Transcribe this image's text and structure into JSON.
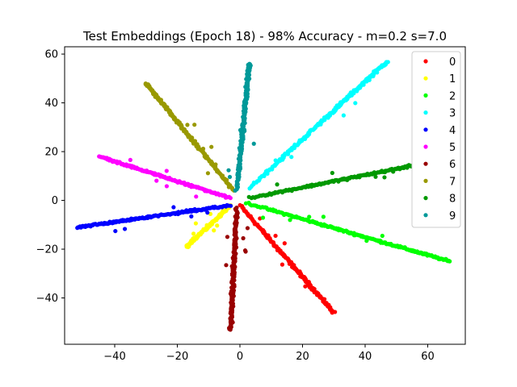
{
  "chart_data": {
    "type": "scatter",
    "title": "Test Embeddings (Epoch 18) - 98% Accuracy - m=0.2 s=7.0",
    "xlabel": "",
    "ylabel": "",
    "xlim": [
      -56,
      72
    ],
    "ylim": [
      -59,
      63
    ],
    "xticks": [
      -40,
      -20,
      0,
      20,
      40,
      60
    ],
    "yticks": [
      -40,
      -20,
      0,
      20,
      40,
      60
    ],
    "grid": false,
    "legend_position": "top-right",
    "series": [
      {
        "name": "0",
        "color": "#ff0000",
        "start": [
          0,
          -2
        ],
        "end": [
          30,
          -46
        ],
        "main": [
          28,
          -44
        ],
        "width": 0.7,
        "n": 170
      },
      {
        "name": "1",
        "color": "#ffff00",
        "start": [
          -3,
          -2
        ],
        "end": [
          -17,
          -19
        ],
        "main": [
          -15,
          -17
        ],
        "width": 0.6,
        "n": 110
      },
      {
        "name": "2",
        "color": "#00ff00",
        "start": [
          2,
          -1
        ],
        "end": [
          67,
          -25
        ],
        "main": [
          58,
          -22
        ],
        "width": 0.6,
        "n": 200
      },
      {
        "name": "3",
        "color": "#00ffff",
        "start": [
          3,
          5
        ],
        "end": [
          47,
          57
        ],
        "main": [
          42,
          52
        ],
        "width": 0.8,
        "n": 180
      },
      {
        "name": "4",
        "color": "#0000ff",
        "start": [
          -3,
          -2
        ],
        "end": [
          -52,
          -11
        ],
        "main": [
          -46,
          -10
        ],
        "width": 0.6,
        "n": 180
      },
      {
        "name": "5",
        "color": "#ff00ff",
        "start": [
          -3,
          1
        ],
        "end": [
          -45,
          18
        ],
        "main": [
          -42,
          17
        ],
        "width": 0.6,
        "n": 170
      },
      {
        "name": "6",
        "color": "#990000",
        "start": [
          -1,
          -3
        ],
        "end": [
          -3,
          -53
        ],
        "main": [
          -3,
          -50
        ],
        "width": 0.7,
        "n": 200
      },
      {
        "name": "7",
        "color": "#999900",
        "start": [
          -2,
          4
        ],
        "end": [
          -30,
          48
        ],
        "main": [
          -28,
          45
        ],
        "width": 0.6,
        "n": 180
      },
      {
        "name": "8",
        "color": "#009900",
        "start": [
          3,
          1
        ],
        "end": [
          62,
          16
        ],
        "main": [
          60,
          15
        ],
        "width": 0.6,
        "n": 200
      },
      {
        "name": "9",
        "color": "#009999",
        "start": [
          -1,
          4
        ],
        "end": [
          3,
          56
        ],
        "main": [
          3,
          53
        ],
        "width": 0.7,
        "n": 200
      }
    ]
  }
}
